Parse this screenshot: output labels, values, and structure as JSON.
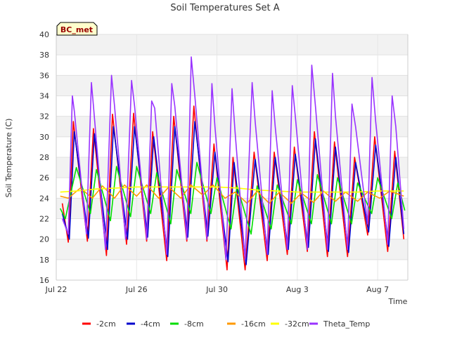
{
  "chart_data": {
    "type": "line",
    "title": "Soil Temperatures Set A",
    "xlabel": "Time",
    "ylabel": "Soil Temperature (C)",
    "ylim": [
      16,
      40
    ],
    "yticks": [
      16,
      18,
      20,
      22,
      24,
      26,
      28,
      30,
      32,
      34,
      36,
      38,
      40
    ],
    "xlim": [
      0,
      17.5
    ],
    "xticks": [
      {
        "x": 0,
        "label": "Jul 22"
      },
      {
        "x": 4,
        "label": "Jul 26"
      },
      {
        "x": 8,
        "label": "Jul 30"
      },
      {
        "x": 12,
        "label": "Aug 3"
      },
      {
        "x": 16,
        "label": "Aug 7"
      }
    ],
    "grid": true,
    "legend_position": "bottom",
    "badge": "BC_met",
    "series": [
      {
        "name": "-2cm",
        "color": "#ff0000",
        "points": [
          [
            0.3,
            23.5
          ],
          [
            0.6,
            19.7
          ],
          [
            0.85,
            31.5
          ],
          [
            1.55,
            19.8
          ],
          [
            1.85,
            30.8
          ],
          [
            2.5,
            18.4
          ],
          [
            2.8,
            32.2
          ],
          [
            3.5,
            19.5
          ],
          [
            3.85,
            32.3
          ],
          [
            4.5,
            19.8
          ],
          [
            4.8,
            30.5
          ],
          [
            5.5,
            17.9
          ],
          [
            5.85,
            32.0
          ],
          [
            6.5,
            19.8
          ],
          [
            6.85,
            33.0
          ],
          [
            7.5,
            19.8
          ],
          [
            7.85,
            29.3
          ],
          [
            8.5,
            17.0
          ],
          [
            8.8,
            28.0
          ],
          [
            9.4,
            17.0
          ],
          [
            9.85,
            28.5
          ],
          [
            10.5,
            17.9
          ],
          [
            10.85,
            28.5
          ],
          [
            11.5,
            18.5
          ],
          [
            11.85,
            29.0
          ],
          [
            12.5,
            18.8
          ],
          [
            12.85,
            30.5
          ],
          [
            13.5,
            18.3
          ],
          [
            13.85,
            29.5
          ],
          [
            14.5,
            18.3
          ],
          [
            14.85,
            28.0
          ],
          [
            15.5,
            20.4
          ],
          [
            15.85,
            30.0
          ],
          [
            16.5,
            18.8
          ],
          [
            16.85,
            28.6
          ],
          [
            17.3,
            20.0
          ]
        ]
      },
      {
        "name": "-4cm",
        "color": "#0000cc",
        "points": [
          [
            0.3,
            22.5
          ],
          [
            0.65,
            20.0
          ],
          [
            0.9,
            30.5
          ],
          [
            1.6,
            20.1
          ],
          [
            1.9,
            30.3
          ],
          [
            2.55,
            19.0
          ],
          [
            2.85,
            31.0
          ],
          [
            3.55,
            20.0
          ],
          [
            3.9,
            31.0
          ],
          [
            4.55,
            20.2
          ],
          [
            4.85,
            30.0
          ],
          [
            5.55,
            18.3
          ],
          [
            5.9,
            31.0
          ],
          [
            6.55,
            20.2
          ],
          [
            6.9,
            31.5
          ],
          [
            7.55,
            20.3
          ],
          [
            7.9,
            28.5
          ],
          [
            8.55,
            17.8
          ],
          [
            8.85,
            27.5
          ],
          [
            9.45,
            17.5
          ],
          [
            9.9,
            27.8
          ],
          [
            10.55,
            18.5
          ],
          [
            10.9,
            28.0
          ],
          [
            11.55,
            19.0
          ],
          [
            11.9,
            28.3
          ],
          [
            12.55,
            19.2
          ],
          [
            12.9,
            29.8
          ],
          [
            13.55,
            18.8
          ],
          [
            13.9,
            29.0
          ],
          [
            14.55,
            18.7
          ],
          [
            14.9,
            27.5
          ],
          [
            15.55,
            20.7
          ],
          [
            15.9,
            29.2
          ],
          [
            16.55,
            19.3
          ],
          [
            16.9,
            28.0
          ],
          [
            17.3,
            20.5
          ]
        ]
      },
      {
        "name": "-8cm",
        "color": "#00dd00",
        "points": [
          [
            0.2,
            23.0
          ],
          [
            0.45,
            22.0
          ],
          [
            1.0,
            27.0
          ],
          [
            1.7,
            22.5
          ],
          [
            2.0,
            26.8
          ],
          [
            2.7,
            21.8
          ],
          [
            3.0,
            27.1
          ],
          [
            3.7,
            22.2
          ],
          [
            4.0,
            27.1
          ],
          [
            4.7,
            22.5
          ],
          [
            5.0,
            26.5
          ],
          [
            5.7,
            21.5
          ],
          [
            6.0,
            26.8
          ],
          [
            6.7,
            22.5
          ],
          [
            7.0,
            27.5
          ],
          [
            7.7,
            22.5
          ],
          [
            8.0,
            26.0
          ],
          [
            8.7,
            21.0
          ],
          [
            9.0,
            25.2
          ],
          [
            9.7,
            20.5
          ],
          [
            10.0,
            25.2
          ],
          [
            10.7,
            21.0
          ],
          [
            11.0,
            25.3
          ],
          [
            11.7,
            21.5
          ],
          [
            12.0,
            25.8
          ],
          [
            12.7,
            21.5
          ],
          [
            13.0,
            26.3
          ],
          [
            13.7,
            21.5
          ],
          [
            14.0,
            26.0
          ],
          [
            14.7,
            21.5
          ],
          [
            15.0,
            25.5
          ],
          [
            15.7,
            22.5
          ],
          [
            16.0,
            26.0
          ],
          [
            16.7,
            22.0
          ],
          [
            17.0,
            25.5
          ],
          [
            17.35,
            22.8
          ]
        ]
      },
      {
        "name": "-16cm",
        "color": "#ff9900",
        "points": [
          [
            0.2,
            24.2
          ],
          [
            0.6,
            24.0
          ],
          [
            1.2,
            25.0
          ],
          [
            1.8,
            24.0
          ],
          [
            2.3,
            25.2
          ],
          [
            2.9,
            24.0
          ],
          [
            3.4,
            25.3
          ],
          [
            4.0,
            24.2
          ],
          [
            4.5,
            25.3
          ],
          [
            5.1,
            24.0
          ],
          [
            5.6,
            25.1
          ],
          [
            6.2,
            24.0
          ],
          [
            6.7,
            25.3
          ],
          [
            7.3,
            24.3
          ],
          [
            7.8,
            25.3
          ],
          [
            8.4,
            24.0
          ],
          [
            8.9,
            24.6
          ],
          [
            9.5,
            23.5
          ],
          [
            10.0,
            24.7
          ],
          [
            10.6,
            23.5
          ],
          [
            11.1,
            24.6
          ],
          [
            11.7,
            23.5
          ],
          [
            12.2,
            24.5
          ],
          [
            12.8,
            23.6
          ],
          [
            13.3,
            24.7
          ],
          [
            13.9,
            23.7
          ],
          [
            14.4,
            24.6
          ],
          [
            15.0,
            23.7
          ],
          [
            15.5,
            24.6
          ],
          [
            16.1,
            24.0
          ],
          [
            16.6,
            24.7
          ],
          [
            17.3,
            24.2
          ]
        ]
      },
      {
        "name": "-32cm",
        "color": "#ffff00",
        "points": [
          [
            0.2,
            24.6
          ],
          [
            1.0,
            24.7
          ],
          [
            2.0,
            24.9
          ],
          [
            3.0,
            25.0
          ],
          [
            4.0,
            25.1
          ],
          [
            5.0,
            25.1
          ],
          [
            6.0,
            25.1
          ],
          [
            7.0,
            25.1
          ],
          [
            8.0,
            25.1
          ],
          [
            9.0,
            25.0
          ],
          [
            10.0,
            24.8
          ],
          [
            11.0,
            24.7
          ],
          [
            12.0,
            24.6
          ],
          [
            13.0,
            24.6
          ],
          [
            14.0,
            24.6
          ],
          [
            15.0,
            24.6
          ],
          [
            16.0,
            24.7
          ],
          [
            17.3,
            24.7
          ]
        ]
      },
      {
        "name": "Theta_Temp",
        "color": "#9933ff",
        "points": [
          [
            0.3,
            22.0
          ],
          [
            0.6,
            20.5
          ],
          [
            0.8,
            34.0
          ],
          [
            0.9,
            32.5
          ],
          [
            1.5,
            20.5
          ],
          [
            1.75,
            35.3
          ],
          [
            1.85,
            33.0
          ],
          [
            2.45,
            19.0
          ],
          [
            2.75,
            36.0
          ],
          [
            2.9,
            33.0
          ],
          [
            3.45,
            20.0
          ],
          [
            3.75,
            35.5
          ],
          [
            3.9,
            33.0
          ],
          [
            4.5,
            20.0
          ],
          [
            4.75,
            33.5
          ],
          [
            4.9,
            32.8
          ],
          [
            5.5,
            18.5
          ],
          [
            5.75,
            35.2
          ],
          [
            5.9,
            33.0
          ],
          [
            6.5,
            20.0
          ],
          [
            6.72,
            37.8
          ],
          [
            6.9,
            34.0
          ],
          [
            7.5,
            20.0
          ],
          [
            7.75,
            35.2
          ],
          [
            7.9,
            31.0
          ],
          [
            8.45,
            18.0
          ],
          [
            8.75,
            34.7
          ],
          [
            8.9,
            30.5
          ],
          [
            9.4,
            18.0
          ],
          [
            9.75,
            35.3
          ],
          [
            9.9,
            31.5
          ],
          [
            10.5,
            18.5
          ],
          [
            10.75,
            34.5
          ],
          [
            10.9,
            31.0
          ],
          [
            11.5,
            19.0
          ],
          [
            11.75,
            35.0
          ],
          [
            11.9,
            32.0
          ],
          [
            12.5,
            19.0
          ],
          [
            12.72,
            37.0
          ],
          [
            12.9,
            33.0
          ],
          [
            13.5,
            19.0
          ],
          [
            13.75,
            36.2
          ],
          [
            13.9,
            32.0
          ],
          [
            14.5,
            19.0
          ],
          [
            14.72,
            33.2
          ],
          [
            14.9,
            31.0
          ],
          [
            15.5,
            21.5
          ],
          [
            15.72,
            35.8
          ],
          [
            15.9,
            31.5
          ],
          [
            16.5,
            19.5
          ],
          [
            16.72,
            34.0
          ],
          [
            16.9,
            31.0
          ],
          [
            17.3,
            21.0
          ]
        ]
      }
    ]
  }
}
